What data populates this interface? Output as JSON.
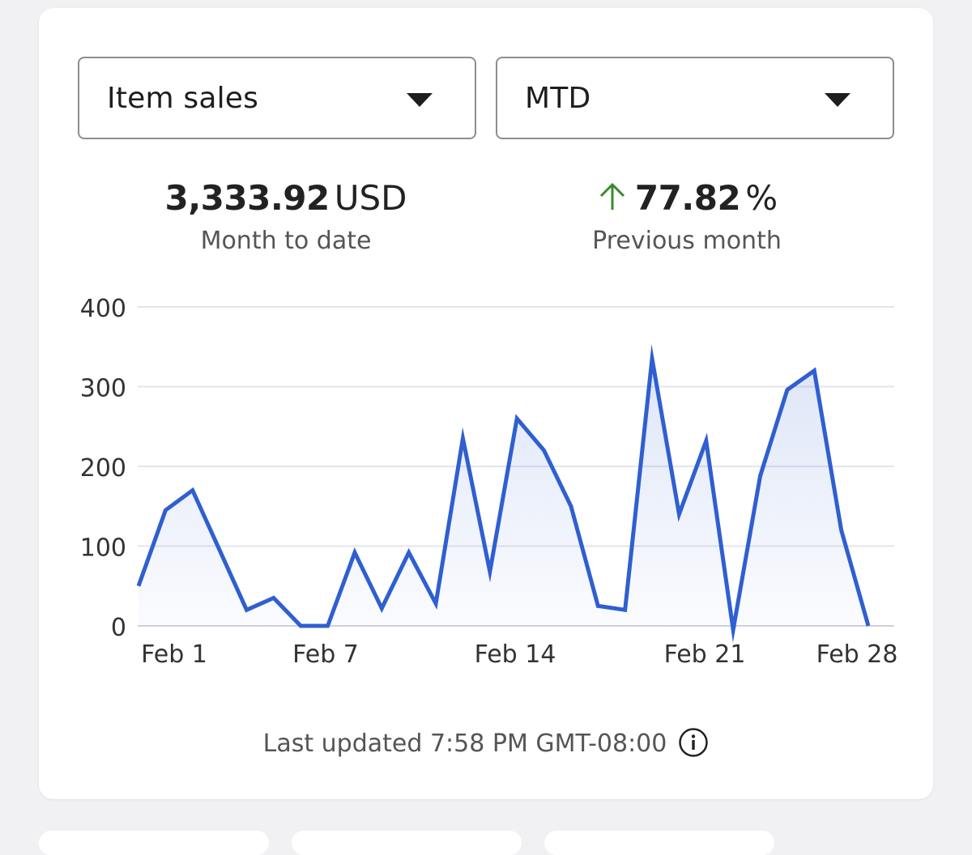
{
  "selects": {
    "metric": "Item sales",
    "period": "MTD"
  },
  "summary": {
    "total_value": "3,333.92",
    "total_unit": "USD",
    "total_label": "Month to date",
    "change_value": "77.82",
    "change_unit": "%",
    "change_label": "Previous month",
    "change_direction": "up",
    "positive_color": "#3b8a2a"
  },
  "chart_data": {
    "type": "area",
    "title": "",
    "xlabel": "",
    "ylabel": "",
    "ylim": [
      0,
      400
    ],
    "yticks": [
      "400",
      "300",
      "200",
      "100",
      "0"
    ],
    "xticks": [
      "Feb 1",
      "Feb 7",
      "Feb 14",
      "Feb 21",
      "Feb 28"
    ],
    "grid": true,
    "line_color": "#2f5fd0",
    "series": [
      {
        "name": "",
        "x": [
          "Jan 31",
          "Feb 1",
          "Feb 2",
          "Feb 3",
          "Feb 4",
          "Feb 5",
          "Feb 6",
          "Feb 7",
          "Feb 8",
          "Feb 9",
          "Feb 10",
          "Feb 11",
          "Feb 12",
          "Feb 13",
          "Feb 14",
          "Feb 15",
          "Feb 16",
          "Feb 17",
          "Feb 18",
          "Feb 19",
          "Feb 20",
          "Feb 21",
          "Feb 22",
          "Feb 23",
          "Feb 24",
          "Feb 25",
          "Feb 26",
          "Feb 27",
          "Feb 28"
        ],
        "values": [
          50,
          145,
          170,
          95,
          20,
          35,
          0,
          0,
          92,
          22,
          92,
          28,
          235,
          68,
          260,
          220,
          150,
          25,
          20,
          335,
          140,
          232,
          -5,
          188,
          296,
          320,
          120,
          0,
          null
        ]
      }
    ]
  },
  "footer": {
    "last_updated": "Last updated 7:58 PM GMT-08:00"
  }
}
